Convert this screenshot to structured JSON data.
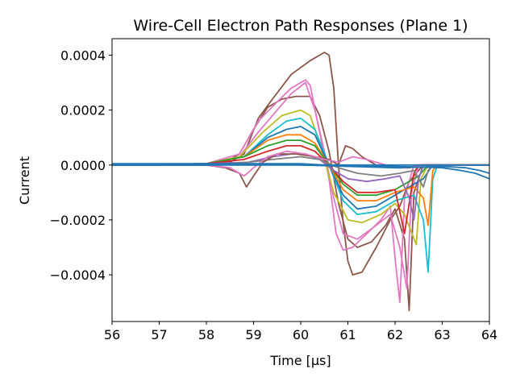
{
  "chart_data": {
    "type": "line",
    "title": "Wire-Cell Electron Path Responses (Plane 1)",
    "xlabel": "Time [μs]",
    "ylabel": "Current",
    "xlim": [
      56,
      64
    ],
    "ylim": [
      -0.00057,
      0.00046
    ],
    "xticks": [
      "56",
      "57",
      "58",
      "59",
      "60",
      "61",
      "62",
      "63",
      "64"
    ],
    "yticks": [
      {
        "value": 0.0004,
        "label": "0.0004"
      },
      {
        "value": 0.0002,
        "label": "0.0002"
      },
      {
        "value": 0.0,
        "label": "0.0000"
      },
      {
        "value": -0.0002,
        "label": "−0.0002"
      },
      {
        "value": -0.0004,
        "label": "−0.0004"
      }
    ],
    "grid": false,
    "legend": "none",
    "series": [
      {
        "color": "#8c564b",
        "points": [
          [
            56,
            0.0
          ],
          [
            57,
            0.0
          ],
          [
            58,
            5e-06
          ],
          [
            58.4,
            1e-05
          ],
          [
            58.7,
            4e-05
          ],
          [
            59,
            0.00013
          ],
          [
            59.3,
            0.00021
          ],
          [
            59.6,
            0.00024
          ],
          [
            59.9,
            0.00025
          ],
          [
            60.2,
            0.00025
          ],
          [
            60.4,
            0.00018
          ],
          [
            60.6,
            5e-05
          ],
          [
            60.8,
            -0.00014
          ],
          [
            61,
            -0.00027
          ],
          [
            61.2,
            -0.0003
          ],
          [
            61.5,
            -0.00028
          ],
          [
            61.8,
            -0.00022
          ],
          [
            62.0,
            -0.00016
          ],
          [
            62.2,
            -0.00027
          ],
          [
            62.3,
            -0.00053
          ],
          [
            62.4,
            -0.0001
          ],
          [
            62.6,
            0.0
          ],
          [
            64,
            0.0
          ]
        ]
      },
      {
        "color": "#8c564b",
        "points": [
          [
            56,
            0.0
          ],
          [
            58,
            5e-06
          ],
          [
            58.5,
            1e-05
          ],
          [
            58.8,
            4e-05
          ],
          [
            59.1,
            0.00017
          ],
          [
            59.4,
            0.00024
          ],
          [
            59.8,
            0.00033
          ],
          [
            60.2,
            0.00038
          ],
          [
            60.5,
            0.00041
          ],
          [
            60.6,
            0.0004
          ],
          [
            60.7,
            0.00028
          ],
          [
            60.8,
            0.0
          ],
          [
            60.9,
            -0.00021
          ],
          [
            61,
            -0.00035
          ],
          [
            61.1,
            -0.0004
          ],
          [
            61.3,
            -0.00039
          ],
          [
            61.6,
            -0.0003
          ],
          [
            61.9,
            -0.0002
          ],
          [
            62.1,
            -0.00015
          ],
          [
            62.3,
            -6e-05
          ],
          [
            62.6,
            0.0
          ],
          [
            64,
            0.0
          ]
        ]
      },
      {
        "color": "#e377c2",
        "points": [
          [
            56,
            0.0
          ],
          [
            58,
            5e-06
          ],
          [
            58.7,
            4e-05
          ],
          [
            59.1,
            0.00016
          ],
          [
            59.5,
            0.00023
          ],
          [
            59.8,
            0.00028
          ],
          [
            60.1,
            0.00031
          ],
          [
            60.2,
            0.00029
          ],
          [
            60.4,
            0.00012
          ],
          [
            60.6,
            -5e-05
          ],
          [
            60.75,
            -0.00025
          ],
          [
            60.9,
            -0.00031
          ],
          [
            61.1,
            -0.0003
          ],
          [
            61.4,
            -0.00025
          ],
          [
            61.7,
            -0.0002
          ],
          [
            61.9,
            -0.00015
          ],
          [
            62.0,
            -0.00034
          ],
          [
            62.1,
            -0.0005
          ],
          [
            62.2,
            -0.00012
          ],
          [
            62.4,
            0.0
          ],
          [
            64,
            0.0
          ]
        ]
      },
      {
        "color": "#e377c2",
        "points": [
          [
            56,
            0.0
          ],
          [
            58,
            5e-06
          ],
          [
            58.7,
            3e-05
          ],
          [
            59.1,
            0.00012
          ],
          [
            59.5,
            0.0002
          ],
          [
            59.8,
            0.00026
          ],
          [
            60.1,
            0.0003
          ],
          [
            60.3,
            0.0002
          ],
          [
            60.5,
            5e-05
          ],
          [
            60.7,
            -0.00012
          ],
          [
            60.9,
            -0.00025
          ],
          [
            61.2,
            -0.00027
          ],
          [
            61.6,
            -0.00022
          ],
          [
            61.9,
            -0.00018
          ],
          [
            62.1,
            -0.0003
          ],
          [
            62.25,
            -0.00045
          ],
          [
            62.35,
            -0.0001
          ],
          [
            62.5,
            0.0
          ],
          [
            64,
            0.0
          ]
        ]
      },
      {
        "color": "#bcbd22",
        "points": [
          [
            56,
            0.0
          ],
          [
            58,
            5e-06
          ],
          [
            58.7,
            3e-05
          ],
          [
            59.2,
            0.00012
          ],
          [
            59.6,
            0.00018
          ],
          [
            60.0,
            0.0002
          ],
          [
            60.2,
            0.00018
          ],
          [
            60.4,
            8e-05
          ],
          [
            60.7,
            -0.0001
          ],
          [
            61,
            -0.0002
          ],
          [
            61.3,
            -0.00021
          ],
          [
            61.7,
            -0.00018
          ],
          [
            62.0,
            -0.00014
          ],
          [
            62.2,
            -0.00018
          ],
          [
            62.45,
            -0.00029
          ],
          [
            62.55,
            -5e-05
          ],
          [
            62.7,
            0.0
          ],
          [
            64,
            0.0
          ]
        ]
      },
      {
        "color": "#17becf",
        "points": [
          [
            56,
            0.0
          ],
          [
            58,
            5e-06
          ],
          [
            58.8,
            3e-05
          ],
          [
            59.3,
            0.00011
          ],
          [
            59.7,
            0.00016
          ],
          [
            60.0,
            0.00017
          ],
          [
            60.3,
            0.00013
          ],
          [
            60.6,
            0.0
          ],
          [
            60.9,
            -0.00013
          ],
          [
            61.2,
            -0.00018
          ],
          [
            61.6,
            -0.00017
          ],
          [
            62.0,
            -0.00013
          ],
          [
            62.4,
            -0.00011
          ],
          [
            62.6,
            -0.0002
          ],
          [
            62.7,
            -0.00039
          ],
          [
            62.8,
            -5e-05
          ],
          [
            62.9,
            0.0
          ],
          [
            64,
            0.0
          ]
        ]
      },
      {
        "color": "#1f77b4",
        "points": [
          [
            56,
            0.0
          ],
          [
            58,
            5e-06
          ],
          [
            58.8,
            3e-05
          ],
          [
            59.3,
            0.0001
          ],
          [
            59.7,
            0.00013
          ],
          [
            60.0,
            0.00014
          ],
          [
            60.3,
            0.00011
          ],
          [
            60.6,
            0.0
          ],
          [
            60.9,
            -0.00011
          ],
          [
            61.2,
            -0.00016
          ],
          [
            61.6,
            -0.00015
          ],
          [
            62.0,
            -0.00011
          ],
          [
            62.3,
            -8e-05
          ],
          [
            62.6,
            -5e-05
          ],
          [
            62.8,
            0.0
          ],
          [
            64,
            0.0
          ]
        ]
      },
      {
        "color": "#ff7f0e",
        "points": [
          [
            56,
            0.0
          ],
          [
            58,
            5e-06
          ],
          [
            58.8,
            3e-05
          ],
          [
            59.3,
            9e-05
          ],
          [
            59.7,
            0.00011
          ],
          [
            60.0,
            0.00011
          ],
          [
            60.3,
            8e-05
          ],
          [
            60.6,
            0.0
          ],
          [
            60.9,
            -9e-05
          ],
          [
            61.2,
            -0.00013
          ],
          [
            61.6,
            -0.00013
          ],
          [
            62.0,
            -0.0001
          ],
          [
            62.4,
            -8e-05
          ],
          [
            62.6,
            -0.00012
          ],
          [
            62.7,
            -0.00022
          ],
          [
            62.8,
            -2e-05
          ],
          [
            62.9,
            0.0
          ],
          [
            64,
            0.0
          ]
        ]
      },
      {
        "color": "#2ca02c",
        "points": [
          [
            56,
            0.0
          ],
          [
            58,
            5e-06
          ],
          [
            58.8,
            3e-05
          ],
          [
            59.3,
            7e-05
          ],
          [
            59.7,
            9e-05
          ],
          [
            60.0,
            9e-05
          ],
          [
            60.3,
            7e-05
          ],
          [
            60.6,
            0.0
          ],
          [
            60.9,
            -7e-05
          ],
          [
            61.2,
            -0.00011
          ],
          [
            61.6,
            -0.00011
          ],
          [
            62.0,
            -9e-05
          ],
          [
            62.3,
            -6e-05
          ],
          [
            62.5,
            -4e-05
          ],
          [
            62.7,
            0.0
          ],
          [
            64,
            0.0
          ]
        ]
      },
      {
        "color": "#d62728",
        "points": [
          [
            56,
            0.0
          ],
          [
            58,
            5e-06
          ],
          [
            58.8,
            2e-05
          ],
          [
            59.3,
            5e-05
          ],
          [
            59.7,
            7e-05
          ],
          [
            60.0,
            7e-05
          ],
          [
            60.3,
            5e-05
          ],
          [
            60.6,
            0.0
          ],
          [
            60.9,
            -6e-05
          ],
          [
            61.2,
            -0.0001
          ],
          [
            61.6,
            -0.0001
          ],
          [
            62.0,
            -9e-05
          ],
          [
            62.2,
            -0.00025
          ],
          [
            62.3,
            -0.00014
          ],
          [
            62.4,
            -3e-05
          ],
          [
            62.5,
            0.0
          ],
          [
            64,
            0.0
          ]
        ]
      },
      {
        "color": "#9467bd",
        "points": [
          [
            56,
            0.0
          ],
          [
            58,
            5e-06
          ],
          [
            58.9,
            1e-05
          ],
          [
            59.4,
            3e-05
          ],
          [
            59.8,
            4e-05
          ],
          [
            60.1,
            4e-05
          ],
          [
            60.4,
            2e-05
          ],
          [
            60.7,
            -2e-05
          ],
          [
            61.0,
            -5e-05
          ],
          [
            61.4,
            -6e-05
          ],
          [
            61.8,
            -5e-05
          ],
          [
            62.1,
            -4e-05
          ],
          [
            62.3,
            -0.00012
          ],
          [
            62.4,
            -0.0002
          ],
          [
            62.5,
            -5e-05
          ],
          [
            62.6,
            0.0
          ],
          [
            64,
            0.0
          ]
        ]
      },
      {
        "color": "#7f7f7f",
        "points": [
          [
            56,
            0.0
          ],
          [
            58,
            0.0
          ],
          [
            58.9,
            1e-05
          ],
          [
            59.4,
            2e-05
          ],
          [
            60.0,
            3e-05
          ],
          [
            60.4,
            2e-05
          ],
          [
            60.8,
            -1e-05
          ],
          [
            61.2,
            -3e-05
          ],
          [
            61.7,
            -4e-05
          ],
          [
            62.1,
            -3e-05
          ],
          [
            62.4,
            -2e-05
          ],
          [
            62.6,
            -8e-05
          ],
          [
            62.7,
            -2e-05
          ],
          [
            62.8,
            0.0
          ],
          [
            64,
            0.0
          ]
        ]
      },
      {
        "color": "#8c564b",
        "points": [
          [
            56,
            0.0
          ],
          [
            58,
            0.0
          ],
          [
            58.4,
            -1e-05
          ],
          [
            58.7,
            -3e-05
          ],
          [
            58.85,
            -8e-05
          ],
          [
            59.0,
            -4e-05
          ],
          [
            59.2,
            1e-05
          ],
          [
            59.5,
            4e-05
          ],
          [
            59.9,
            4e-05
          ],
          [
            60.3,
            3e-05
          ],
          [
            60.6,
            2e-05
          ],
          [
            60.8,
            0.0
          ],
          [
            60.95,
            7e-05
          ],
          [
            61.1,
            6e-05
          ],
          [
            61.3,
            3e-05
          ],
          [
            61.6,
            0.0
          ],
          [
            62.0,
            -1e-05
          ],
          [
            62.3,
            -1e-05
          ],
          [
            62.6,
            0.0
          ],
          [
            64,
            0.0
          ]
        ]
      },
      {
        "color": "#e377c2",
        "points": [
          [
            56,
            0.0
          ],
          [
            58,
            0.0
          ],
          [
            58.5,
            -1e-05
          ],
          [
            58.8,
            -4e-05
          ],
          [
            59.0,
            -1e-05
          ],
          [
            59.3,
            3e-05
          ],
          [
            59.7,
            5e-05
          ],
          [
            60.1,
            4e-05
          ],
          [
            60.5,
            2e-05
          ],
          [
            60.8,
            1e-05
          ],
          [
            61.1,
            3e-05
          ],
          [
            61.4,
            2e-05
          ],
          [
            61.8,
            0.0
          ],
          [
            62.2,
            -1e-05
          ],
          [
            62.6,
            0.0
          ],
          [
            64,
            0.0
          ]
        ]
      },
      {
        "color": "#1f77b4",
        "points": [
          [
            56,
            0.0
          ],
          [
            57,
            0.0
          ],
          [
            58,
            0.0
          ],
          [
            59,
            5e-06
          ],
          [
            60,
            5e-06
          ],
          [
            61,
            -5e-06
          ],
          [
            62,
            -1e-05
          ],
          [
            63,
            -5e-06
          ],
          [
            63.5,
            -1e-05
          ],
          [
            63.8,
            -2e-05
          ],
          [
            64,
            -3e-05
          ]
        ]
      },
      {
        "color": "#1f77b4",
        "points": [
          [
            56,
            5e-06
          ],
          [
            57,
            5e-06
          ],
          [
            58,
            5e-06
          ],
          [
            59,
            5e-06
          ],
          [
            60,
            0.0
          ],
          [
            61,
            -5e-06
          ],
          [
            62,
            -5e-06
          ],
          [
            63,
            -1e-05
          ],
          [
            63.4,
            -2e-05
          ],
          [
            63.7,
            -3e-05
          ],
          [
            64,
            -5e-05
          ]
        ]
      },
      {
        "color": "#1f77b4",
        "points": [
          [
            56,
            0.0
          ],
          [
            60,
            0.0
          ],
          [
            62,
            0.0
          ],
          [
            64,
            0.0
          ]
        ]
      }
    ]
  }
}
